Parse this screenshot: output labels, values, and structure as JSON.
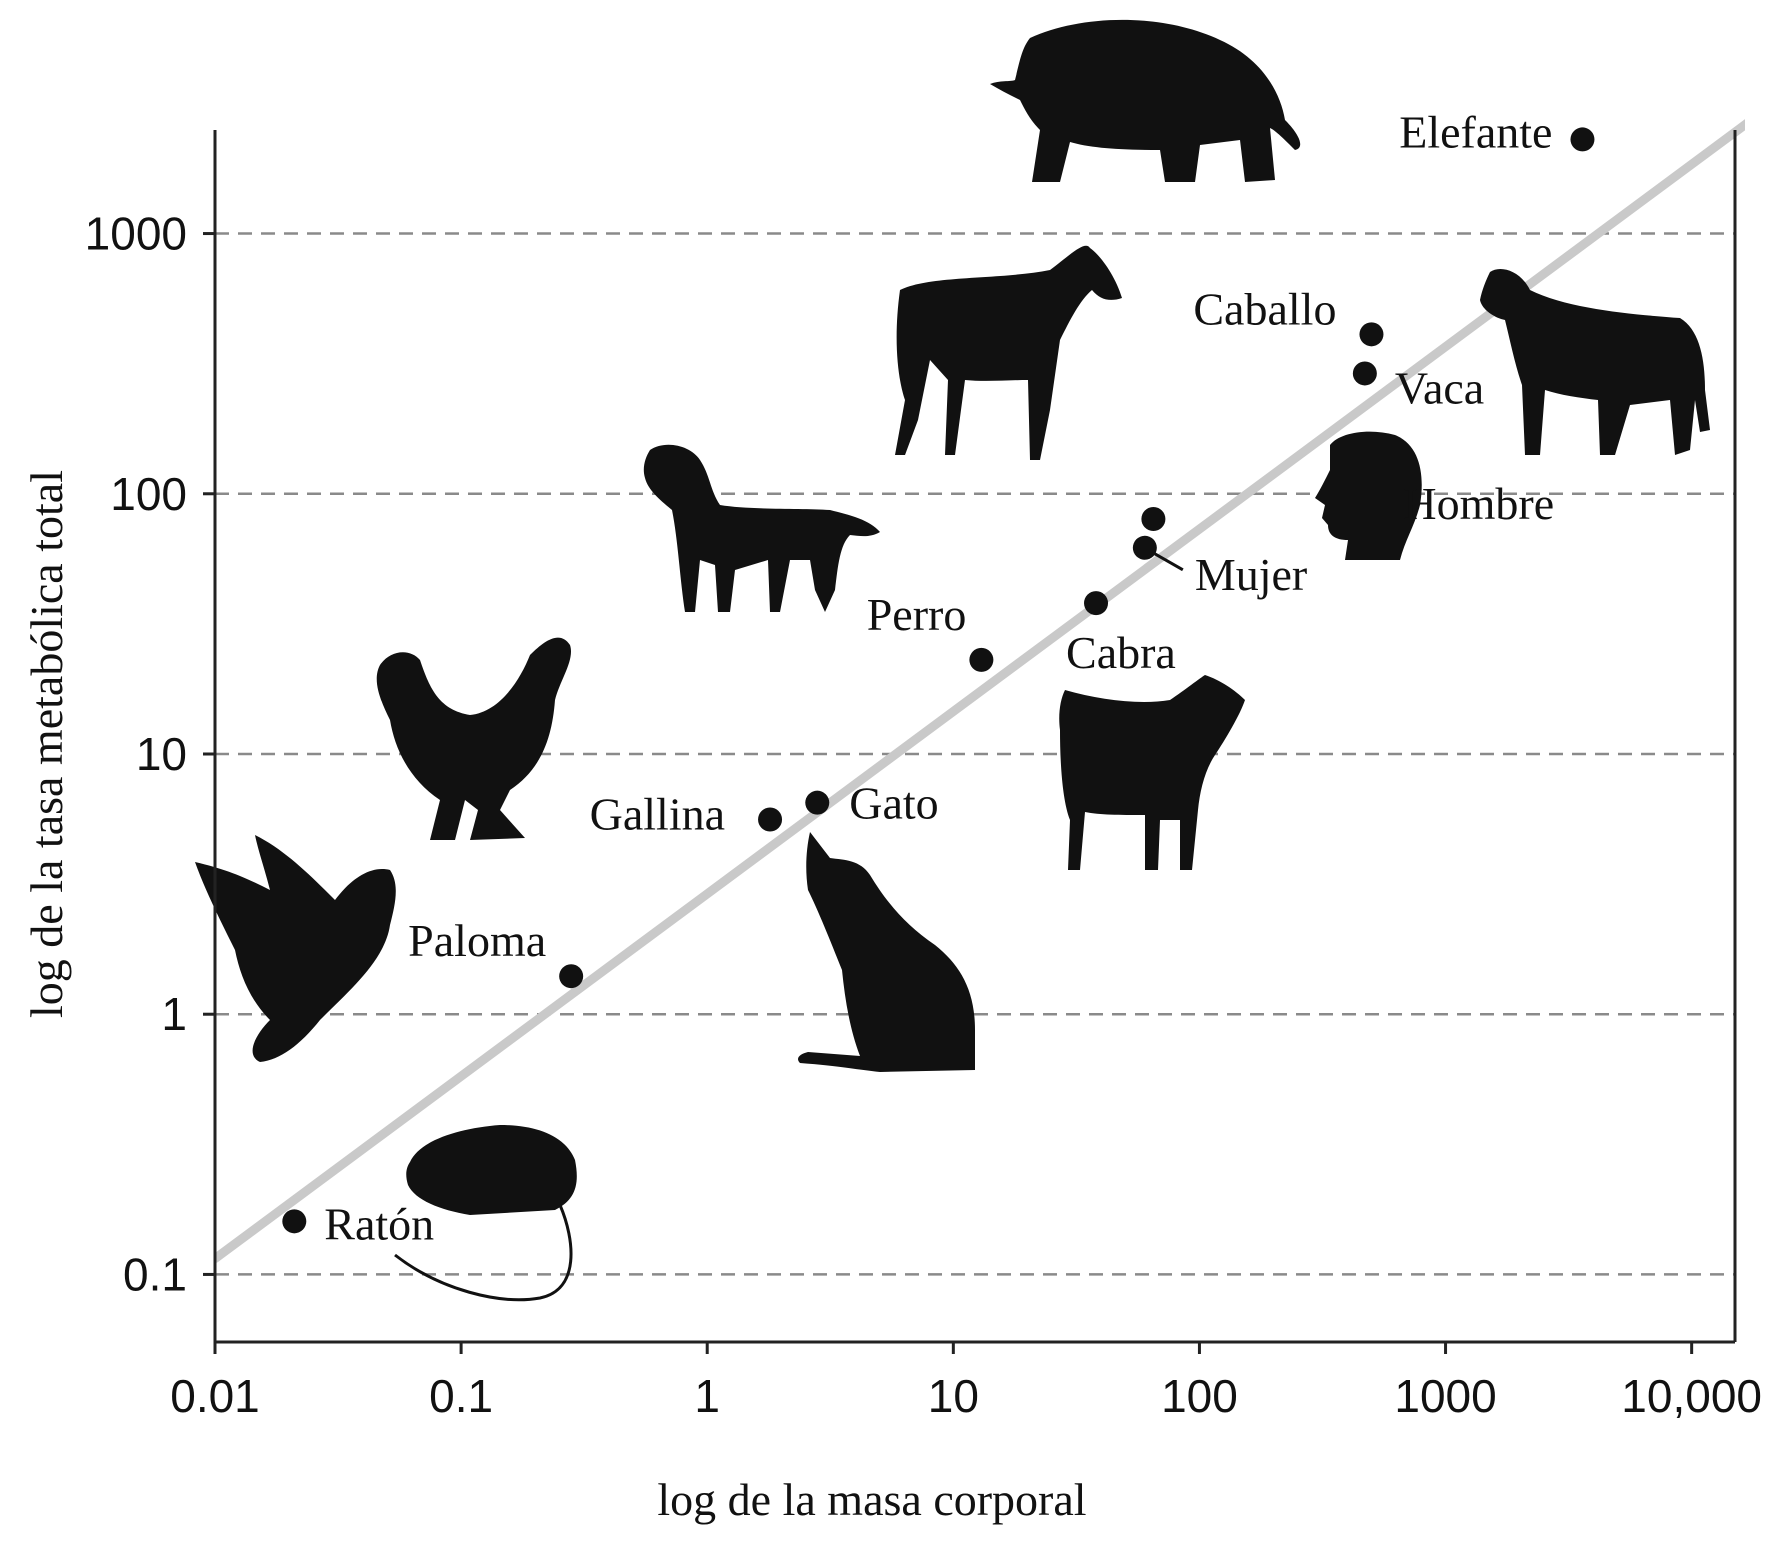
{
  "chart_data": {
    "type": "scatter",
    "xlabel": "log de la masa corporal",
    "ylabel": "log de la tasa metabólica total",
    "x_scale": "log",
    "y_scale": "log",
    "xlim": [
      0.01,
      15000
    ],
    "ylim": [
      0.055,
      2500
    ],
    "x_ticks": [
      {
        "value": 0.01,
        "label": "0.01"
      },
      {
        "value": 0.1,
        "label": "0.1"
      },
      {
        "value": 1,
        "label": "1"
      },
      {
        "value": 10,
        "label": "10"
      },
      {
        "value": 100,
        "label": "100"
      },
      {
        "value": 1000,
        "label": "1000"
      },
      {
        "value": 10000,
        "label": "10,000"
      }
    ],
    "y_ticks": [
      {
        "value": 0.1,
        "label": "0.1"
      },
      {
        "value": 1,
        "label": "1"
      },
      {
        "value": 10,
        "label": "10"
      },
      {
        "value": 100,
        "label": "100"
      },
      {
        "value": 1000,
        "label": "1000"
      }
    ],
    "grid": "horizontal-dashed",
    "legend": "none",
    "fit_line": {
      "x": [
        0.01,
        20000
      ],
      "y": [
        0.115,
        3000
      ],
      "color": "#c9c9c9"
    },
    "points": [
      {
        "label": "Ratón",
        "x": 0.021,
        "y": 0.16,
        "icon": "mouse-icon"
      },
      {
        "label": "Paloma",
        "x": 0.28,
        "y": 1.4,
        "icon": "pigeon-icon"
      },
      {
        "label": "Gallina",
        "x": 1.8,
        "y": 5.6,
        "icon": "hen-icon"
      },
      {
        "label": "Gato",
        "x": 2.8,
        "y": 6.5,
        "icon": "cat-icon"
      },
      {
        "label": "Perro",
        "x": 13,
        "y": 23,
        "icon": "dog-icon"
      },
      {
        "label": "Cabra",
        "x": 38,
        "y": 38,
        "icon": "goat-icon"
      },
      {
        "label": "Mujer",
        "x": 60,
        "y": 62,
        "icon": ""
      },
      {
        "label": "Hombre",
        "x": 65,
        "y": 80,
        "icon": "human-head-icon"
      },
      {
        "label": "Vaca",
        "x": 470,
        "y": 290,
        "icon": "cow-icon"
      },
      {
        "label": "Caballo",
        "x": 500,
        "y": 410,
        "icon": "horse-icon"
      },
      {
        "label": "Elefante",
        "x": 3600,
        "y": 2300,
        "icon": "elephant-icon"
      }
    ]
  }
}
